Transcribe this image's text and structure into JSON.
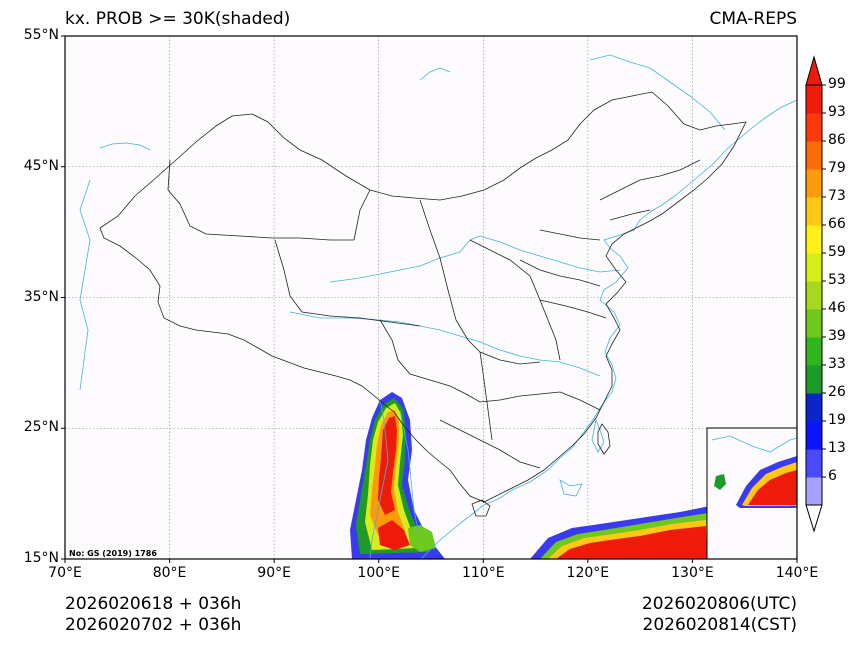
{
  "header": {
    "title": "kx. PROB >= 30K(shaded)",
    "model": "CMA-REPS"
  },
  "map": {
    "lat_ticks": [
      "55°N",
      "45°N",
      "35°N",
      "25°N",
      "15°N"
    ],
    "lon_ticks": [
      "70°E",
      "80°E",
      "90°E",
      "100°E",
      "110°E",
      "120°E",
      "130°E",
      "140°E"
    ],
    "extent": {
      "lon": [
        70,
        140
      ],
      "lat": [
        15,
        55
      ]
    },
    "review_number": "No: GS (2019) 1786",
    "colors": {
      "border": "#222222",
      "river": "#3fb4e0",
      "grid": "#888888"
    }
  },
  "colorbar": {
    "levels": [
      "99",
      "93",
      "86",
      "79",
      "73",
      "66",
      "59",
      "53",
      "46",
      "39",
      "33",
      "26",
      "19",
      "13",
      "6"
    ],
    "colors_low_to_high": [
      "#a3a3ff",
      "#4a4aff",
      "#0a14ff",
      "#0a26c8",
      "#1e9a28",
      "#2fb51e",
      "#6ec81e",
      "#a6d81e",
      "#d8ec1a",
      "#fff01a",
      "#ffc814",
      "#ff9a0a",
      "#ff6a0a",
      "#ff3a0a",
      "#ee1a0a"
    ]
  },
  "footer": {
    "init_utc": "2026020618  +  036h",
    "init_cst": "2026020702  +  036h",
    "valid_utc": "2026020806(UTC)",
    "valid_cst": "2026020814(CST)"
  }
}
